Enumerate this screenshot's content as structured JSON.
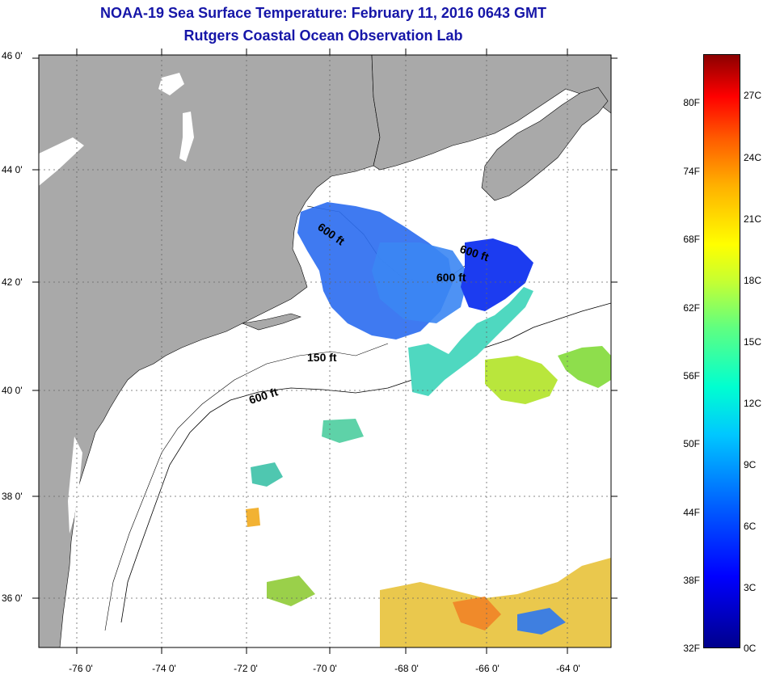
{
  "title": "NOAA-19 Sea Surface Temperature:  February 11, 2016 0643 GMT",
  "subtitle": "Rutgers Coastal Ocean Observation Lab",
  "lat_labels": [
    "46 0'",
    "44 0'",
    "42 0'",
    "40 0'",
    "38 0'",
    "36 0'"
  ],
  "lon_labels": [
    "-76 0'",
    "-74 0'",
    "-72 0'",
    "-70 0'",
    "-68 0'",
    "-66 0'",
    "-64 0'"
  ],
  "contour_labels": [
    "600 ft",
    "600 ft",
    "600 ft",
    "150 ft",
    "600 ft"
  ],
  "colorbar": {
    "fahrenheit": [
      "80F",
      "74F",
      "68F",
      "62F",
      "56F",
      "50F",
      "44F",
      "38F",
      "32F"
    ],
    "celsius": [
      "27C",
      "24C",
      "21C",
      "18C",
      "15C",
      "12C",
      "9C",
      "6C",
      "3C",
      "0C"
    ]
  },
  "colors": {
    "title": "#1616a8",
    "land": "#a9a9a9",
    "water": "#ffffff"
  }
}
